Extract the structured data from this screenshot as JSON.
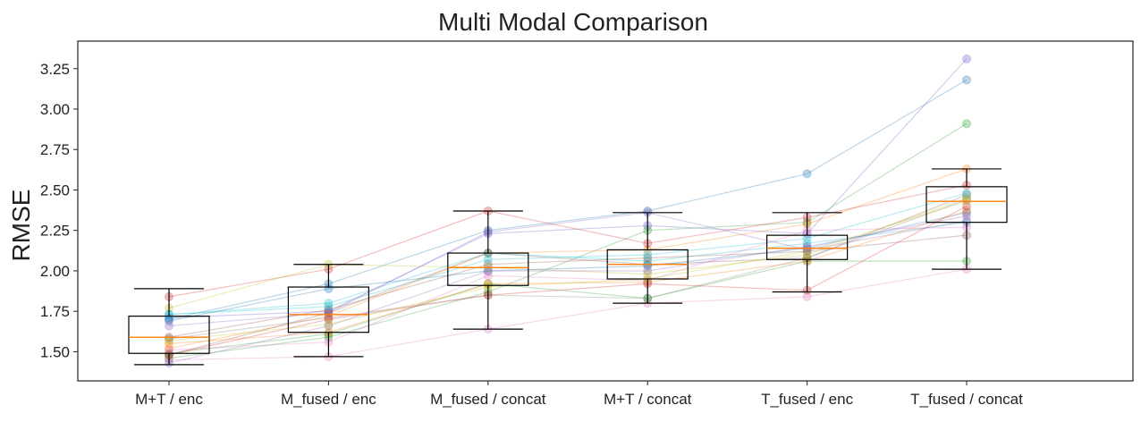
{
  "chart_data": {
    "type": "box",
    "title": "Multi Modal Comparison",
    "xlabel": "",
    "ylabel": "RMSE",
    "categories": [
      "M+T / enc",
      "M_fused / enc",
      "M_fused / concat",
      "M+T / concat",
      "T_fused / enc",
      "T_fused / concat"
    ],
    "ylim": [
      1.32,
      3.42
    ],
    "yticks": [
      1.5,
      1.75,
      2.0,
      2.25,
      2.5,
      2.75,
      3.0,
      3.25
    ],
    "ytick_labels": [
      "1.50",
      "1.75",
      "2.00",
      "2.25",
      "2.50",
      "2.75",
      "3.00",
      "3.25"
    ],
    "grid": false,
    "boxes": [
      {
        "category": "M+T / enc",
        "whisker_low": 1.42,
        "q1": 1.49,
        "median": 1.59,
        "q3": 1.72,
        "whisker_high": 1.89
      },
      {
        "category": "M_fused / enc",
        "whisker_low": 1.47,
        "q1": 1.62,
        "median": 1.73,
        "q3": 1.9,
        "whisker_high": 2.04
      },
      {
        "category": "M_fused / concat",
        "whisker_low": 1.64,
        "q1": 1.91,
        "median": 2.02,
        "q3": 2.11,
        "whisker_high": 2.37
      },
      {
        "category": "M+T / concat",
        "whisker_low": 1.8,
        "q1": 1.95,
        "median": 2.04,
        "q3": 2.13,
        "whisker_high": 2.36
      },
      {
        "category": "T_fused / enc",
        "whisker_low": 1.87,
        "q1": 2.07,
        "median": 2.14,
        "q3": 2.22,
        "whisker_high": 2.36
      },
      {
        "category": "T_fused / concat",
        "whisker_low": 2.01,
        "q1": 2.3,
        "median": 2.43,
        "q3": 2.52,
        "whisker_high": 2.63
      }
    ],
    "series": [
      {
        "color": "#1f77b4",
        "values": [
          1.7,
          1.92,
          2.25,
          2.37,
          2.6,
          3.18
        ]
      },
      {
        "color": "#6a5acd",
        "values": [
          1.71,
          1.75,
          2.23,
          2.28,
          2.23,
          3.31
        ]
      },
      {
        "color": "#2ca02c",
        "values": [
          1.46,
          1.59,
          1.87,
          2.25,
          2.3,
          2.91
        ]
      },
      {
        "color": "#ff7f0e",
        "values": [
          1.52,
          1.72,
          2.11,
          2.13,
          2.29,
          2.63
        ]
      },
      {
        "color": "#d62728",
        "values": [
          1.84,
          2.01,
          2.37,
          2.17,
          2.33,
          2.53
        ]
      },
      {
        "color": "#8c564b",
        "values": [
          1.48,
          1.74,
          2.11,
          2.04,
          2.08,
          2.47
        ]
      },
      {
        "color": "#e377c2",
        "values": [
          1.45,
          1.47,
          1.64,
          1.8,
          1.84,
          2.01
        ]
      },
      {
        "color": "#7f7f7f",
        "values": [
          1.58,
          1.71,
          1.85,
          1.83,
          2.08,
          2.44
        ]
      },
      {
        "color": "#bcbd22",
        "values": [
          1.77,
          2.04,
          2.02,
          1.98,
          2.1,
          2.45
        ]
      },
      {
        "color": "#17becf",
        "values": [
          1.73,
          1.8,
          2.11,
          2.06,
          2.17,
          2.3
        ]
      },
      {
        "color": "#1f77b4",
        "values": [
          1.69,
          1.89,
          2.0,
          2.03,
          2.14,
          2.36
        ]
      },
      {
        "color": "#2ca02c",
        "values": [
          1.49,
          1.61,
          1.92,
          1.83,
          2.06,
          2.06
        ]
      },
      {
        "color": "#ff7f0e",
        "values": [
          1.55,
          1.62,
          1.92,
          1.93,
          2.06,
          2.37
        ]
      },
      {
        "color": "#d62728",
        "values": [
          1.48,
          1.7,
          1.85,
          1.92,
          1.88,
          2.4
        ]
      },
      {
        "color": "#9467bd",
        "values": [
          1.43,
          1.66,
          2.0,
          2.0,
          2.15,
          2.34
        ]
      },
      {
        "color": "#8c564b",
        "values": [
          1.59,
          1.76,
          2.04,
          2.08,
          2.12,
          2.22
        ]
      },
      {
        "color": "#e377c2",
        "values": [
          1.51,
          1.56,
          1.97,
          1.94,
          2.25,
          2.27
        ]
      },
      {
        "color": "#17becf",
        "values": [
          1.73,
          1.78,
          2.07,
          2.1,
          2.2,
          2.48
        ]
      },
      {
        "color": "#bcbd22",
        "values": [
          1.57,
          1.67,
          1.9,
          1.95,
          2.12,
          2.43
        ]
      },
      {
        "color": "#9467bd",
        "values": [
          1.66,
          1.74,
          2.24,
          2.36,
          2.13,
          2.31
        ]
      }
    ],
    "box_color": "#000000",
    "median_color": "#ff7f0e"
  }
}
